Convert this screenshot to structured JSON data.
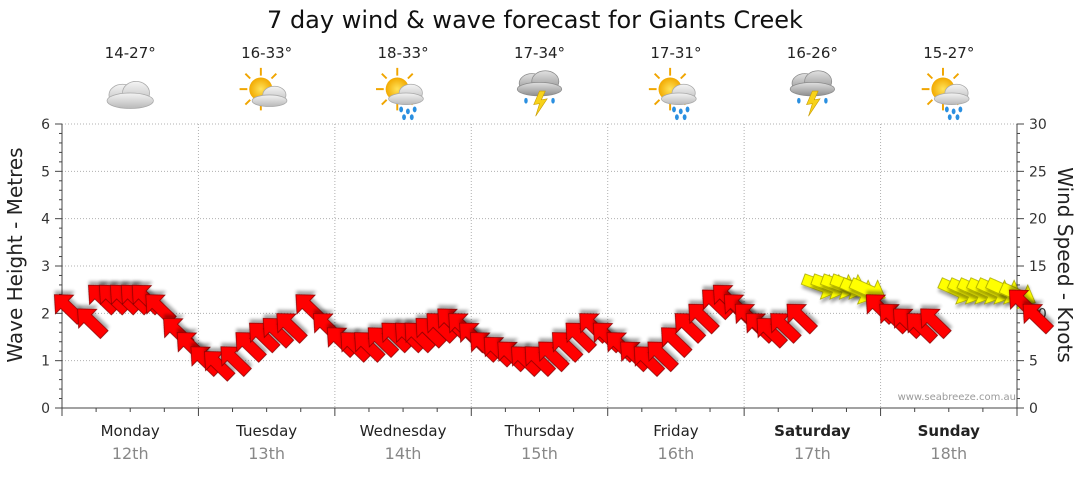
{
  "chart_data": {
    "type": "line",
    "title": "7 day wind & wave forecast for Giants Creek",
    "ylabel_left": "Wave Height - Metres",
    "ylabel_right": "Wind Speed - Knots",
    "y_left_lim": [
      0,
      6
    ],
    "y_right_lim": [
      0,
      30
    ],
    "y_left_ticks": [
      "0",
      "1",
      "2",
      "3",
      "4",
      "5",
      "6"
    ],
    "y_right_ticks": [
      "0",
      "5",
      "10",
      "15",
      "20",
      "25",
      "30"
    ],
    "grid": true,
    "credit": "www.seabreeze.com.au",
    "days": [
      {
        "name": "Monday",
        "date": "12th",
        "temp": "14-27°",
        "weather": "cloudy-icon",
        "bold": false
      },
      {
        "name": "Tuesday",
        "date": "13th",
        "temp": "16-33°",
        "weather": "partly-cloudy-icon",
        "bold": false
      },
      {
        "name": "Wednesday",
        "date": "14th",
        "temp": "18-33°",
        "weather": "showers-icon",
        "bold": false
      },
      {
        "name": "Thursday",
        "date": "15th",
        "temp": "17-34°",
        "weather": "storm-icon",
        "bold": false
      },
      {
        "name": "Friday",
        "date": "16th",
        "temp": "17-31°",
        "weather": "showers-icon",
        "bold": false
      },
      {
        "name": "Saturday",
        "date": "17th",
        "temp": "16-26°",
        "weather": "storm-icon",
        "bold": true
      },
      {
        "name": "Sunday",
        "date": "18th",
        "temp": "15-27°",
        "weather": "showers-icon",
        "bold": true
      }
    ],
    "series": [
      {
        "name": "Wind Speed - Knots",
        "style": "arrows",
        "knots": [
          10.5,
          9,
          11.5,
          11.5,
          11.5,
          11.5,
          11.5,
          10.5,
          8,
          6.5,
          5,
          4.5,
          5,
          6.5,
          7.5,
          8,
          8.5,
          10.5,
          8.5,
          7,
          6.5,
          6.5,
          7,
          7.5,
          7.5,
          7.5,
          8,
          8.5,
          9,
          8.5,
          7.5,
          6.5,
          6,
          5.5,
          5,
          5,
          5.5,
          6.5,
          7.5,
          8.5,
          7.5,
          6.5,
          5.5,
          5,
          5.5,
          7,
          8.5,
          9.5,
          11,
          11.5,
          10.5,
          9.5,
          8.5,
          8,
          8.5,
          9.5,
          13,
          13,
          13,
          13,
          12.5,
          12.5,
          10.5,
          9.5,
          9,
          8.5,
          9,
          12.5,
          12.5,
          12.5,
          12.5,
          12.5,
          12.5,
          12,
          11,
          9.5
        ],
        "times_day_fraction": [
          0.05,
          0.22,
          0.3,
          0.38,
          0.46,
          0.54,
          0.62,
          0.72,
          0.85,
          0.95,
          1.05,
          1.15,
          1.27,
          1.38,
          1.48,
          1.58,
          1.68,
          1.82,
          1.95,
          2.05,
          2.15,
          2.25,
          2.35,
          2.45,
          2.55,
          2.62,
          2.7,
          2.78,
          2.86,
          2.94,
          3.02,
          3.1,
          3.2,
          3.3,
          3.4,
          3.5,
          3.6,
          3.7,
          3.8,
          3.9,
          4.0,
          4.1,
          4.2,
          4.3,
          4.4,
          4.5,
          4.6,
          4.7,
          4.8,
          4.88,
          4.96,
          5.04,
          5.12,
          5.2,
          5.3,
          5.42,
          5.55,
          5.62,
          5.69,
          5.76,
          5.83,
          5.9,
          6.0,
          6.1,
          6.2,
          6.3,
          6.4,
          6.55,
          6.62,
          6.69,
          6.76,
          6.83,
          6.9,
          7.0,
          7.05,
          7.15
        ]
      }
    ]
  }
}
